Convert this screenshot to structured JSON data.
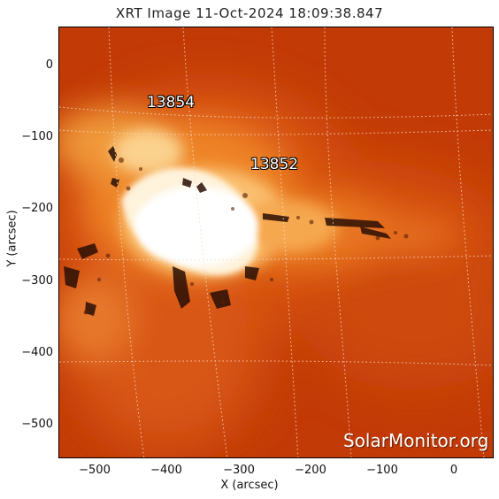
{
  "title": "XRT Image 11-Oct-2024 18:09:38.847",
  "axes": {
    "xlabel": "X (arcsec)",
    "ylabel": "Y (arcsec)",
    "x_ticks": [
      "−500",
      "−400",
      "−300",
      "−200",
      "−100",
      "0"
    ],
    "y_ticks": [
      "0",
      "−100",
      "−200",
      "−300",
      "−400",
      "−500"
    ],
    "xlim": [
      -548,
      55
    ],
    "ylim": [
      -548,
      52
    ]
  },
  "active_regions": [
    {
      "label": "13854"
    },
    {
      "label": "13852"
    }
  ],
  "watermark": "SolarMonitor.org",
  "colors": {
    "background": "#c33a05",
    "mid": "#e36a1a",
    "bright": "#ffffff",
    "grid": "#f3d7bf"
  }
}
